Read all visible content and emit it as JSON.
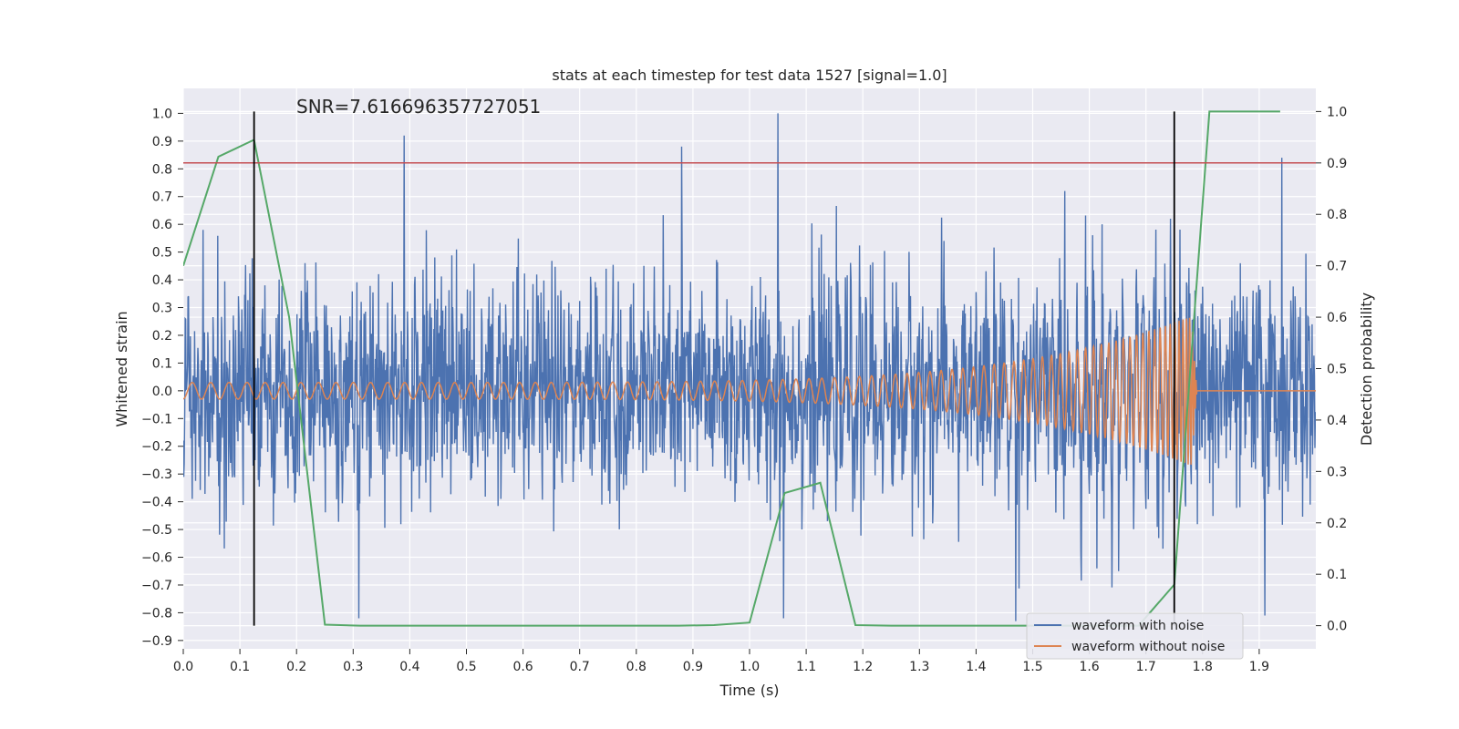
{
  "chart_data": {
    "type": "line",
    "title": "stats at each timestep for test data 1527 [signal=1.0]",
    "annotation": "SNR=7.616696357727051",
    "xlabel": "Time (s)",
    "ylabel": "Whitened strain",
    "y2label": "Detection probability",
    "xlim": [
      0.0,
      2.0
    ],
    "ylim": [
      -0.93,
      1.09
    ],
    "y2lim": [
      -0.045,
      1.045
    ],
    "x_ticks": [
      "0.0",
      "0.1",
      "0.2",
      "0.3",
      "0.4",
      "0.5",
      "0.6",
      "0.7",
      "0.8",
      "0.9",
      "1.0",
      "1.1",
      "1.2",
      "1.3",
      "1.4",
      "1.5",
      "1.6",
      "1.7",
      "1.8",
      "1.9"
    ],
    "y_ticks": [
      "1.0",
      "0.9",
      "0.8",
      "0.7",
      "0.6",
      "0.5",
      "0.4",
      "0.3",
      "0.2",
      "0.1",
      "0.0",
      "−0.1",
      "−0.2",
      "−0.3",
      "−0.4",
      "−0.5",
      "−0.6",
      "−0.7",
      "−0.8",
      "−0.9"
    ],
    "y2_ticks": [
      "1.0",
      "0.9",
      "0.8",
      "0.7",
      "0.6",
      "0.5",
      "0.4",
      "0.3",
      "0.2",
      "0.1",
      "0.0"
    ],
    "grid": true,
    "legend_position": "lower-right",
    "colors": {
      "noise": "#4c72b0",
      "clean": "#dd8452",
      "probability": "#55a868",
      "threshold": "#c44e52",
      "markers": "#000000",
      "background": "#eaeaf2",
      "grid": "#ffffff"
    },
    "series": [
      {
        "name": "waveform with noise",
        "description_values": "dense random noise, amplitude roughly ±0.5 with spikes to ±0.9 across 0–2 s",
        "spikes": [
          {
            "x": 0.39,
            "y": 0.92
          },
          {
            "x": 1.05,
            "y": 1.0
          },
          {
            "x": 0.88,
            "y": 0.88
          },
          {
            "x": 1.94,
            "y": 0.84
          },
          {
            "x": 0.31,
            "y": -0.82
          },
          {
            "x": 1.47,
            "y": -0.83
          },
          {
            "x": 1.06,
            "y": -0.82
          },
          {
            "x": 1.91,
            "y": -0.81
          }
        ]
      },
      {
        "name": "waveform without noise",
        "description_values": "chirp starting ~0.03 amplitude, frequency and amplitude increasing, peaking ~0.27 near 1.78 s, then flat 0 afterwards",
        "start_amp": 0.03,
        "peak_amp": 0.27,
        "peak_time": 1.78,
        "end_time": 1.79
      },
      {
        "name": "detection probability",
        "axis": "right",
        "x": [
          0.0,
          0.062,
          0.125,
          0.187,
          0.25,
          0.312,
          0.375,
          0.437,
          0.5,
          0.562,
          0.625,
          0.687,
          0.75,
          0.812,
          0.875,
          0.937,
          1.0,
          1.062,
          1.125,
          1.187,
          1.25,
          1.312,
          1.375,
          1.437,
          1.5,
          1.562,
          1.625,
          1.687,
          1.75,
          1.812,
          1.875,
          1.937
        ],
        "y": [
          0.7,
          0.912,
          0.945,
          0.6,
          0.002,
          0.0,
          0.0,
          0.0,
          0.0,
          0.0,
          0.0,
          0.0,
          0.0,
          0.0,
          0.0,
          0.001,
          0.006,
          0.258,
          0.278,
          0.001,
          0.0,
          0.0,
          0.0,
          0.0,
          0.0,
          0.0,
          0.0,
          0.0,
          0.08,
          1.0,
          1.0,
          1.0
        ]
      }
    ],
    "threshold": 0.9,
    "marker_lines": [
      0.125,
      1.75
    ]
  }
}
